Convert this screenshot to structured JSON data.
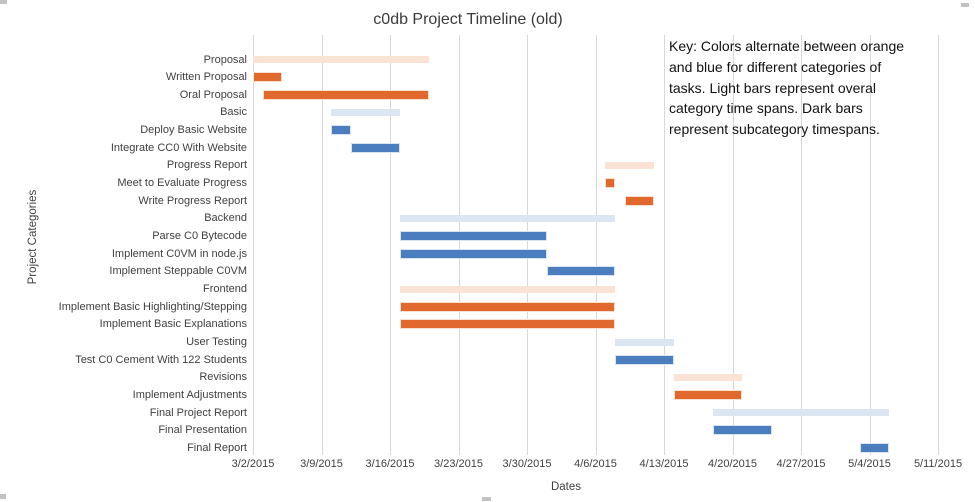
{
  "chart_data": {
    "type": "bar",
    "subtype": "gantt",
    "orientation": "horizontal",
    "title": "c0db Project Timeline (old)",
    "xlabel": "Dates",
    "ylabel": "Project Categories",
    "x_range": [
      "3/2/2015",
      "5/11/2015"
    ],
    "x_ticks": [
      "3/2/2015",
      "3/9/2015",
      "3/16/2015",
      "3/23/2015",
      "3/30/2015",
      "4/6/2015",
      "4/13/2015",
      "4/20/2015",
      "4/27/2015",
      "5/4/2015",
      "5/11/2015"
    ],
    "grid": "vertical-only",
    "legend_position": "none",
    "tasks": [
      {
        "label": "Proposal",
        "start": "3/2/2015",
        "end": "3/20/2015",
        "start_day": 0,
        "end_day": 18,
        "style": "orange_light"
      },
      {
        "label": "Written Proposal",
        "start": "3/2/2015",
        "end": "3/5/2015",
        "start_day": 0,
        "end_day": 3,
        "style": "orange_dark"
      },
      {
        "label": "Oral Proposal",
        "start": "3/3/2015",
        "end": "3/20/2015",
        "start_day": 1,
        "end_day": 18,
        "style": "orange_dark"
      },
      {
        "label": "Basic",
        "start": "3/10/2015",
        "end": "3/17/2015",
        "start_day": 8,
        "end_day": 15,
        "style": "blue_light"
      },
      {
        "label": "Deploy Basic Website",
        "start": "3/10/2015",
        "end": "3/12/2015",
        "start_day": 8,
        "end_day": 10,
        "style": "blue_dark"
      },
      {
        "label": "Integrate CC0 With Website",
        "start": "3/12/2015",
        "end": "3/17/2015",
        "start_day": 10,
        "end_day": 15,
        "style": "blue_dark"
      },
      {
        "label": "Progress Report",
        "start": "4/7/2015",
        "end": "4/12/2015",
        "start_day": 36,
        "end_day": 41,
        "style": "orange_light"
      },
      {
        "label": "Meet to Evaluate Progress",
        "start": "4/7/2015",
        "end": "4/8/2015",
        "start_day": 36,
        "end_day": 37,
        "style": "orange_dark"
      },
      {
        "label": "Write Progress Report",
        "start": "4/9/2015",
        "end": "4/12/2015",
        "start_day": 38,
        "end_day": 41,
        "style": "orange_dark"
      },
      {
        "label": "Backend",
        "start": "3/17/2015",
        "end": "4/8/2015",
        "start_day": 15,
        "end_day": 37,
        "style": "blue_light"
      },
      {
        "label": "Parse C0 Bytecode",
        "start": "3/17/2015",
        "end": "4/1/2015",
        "start_day": 15,
        "end_day": 30,
        "style": "blue_dark"
      },
      {
        "label": "Implement C0VM in node.js",
        "start": "3/17/2015",
        "end": "4/1/2015",
        "start_day": 15,
        "end_day": 30,
        "style": "blue_dark"
      },
      {
        "label": "Implement Steppable C0VM",
        "start": "4/1/2015",
        "end": "4/8/2015",
        "start_day": 30,
        "end_day": 37,
        "style": "blue_dark"
      },
      {
        "label": "Frontend",
        "start": "3/17/2015",
        "end": "4/8/2015",
        "start_day": 15,
        "end_day": 37,
        "style": "orange_light"
      },
      {
        "label": "Implement Basic Highlighting/Stepping",
        "start": "3/17/2015",
        "end": "4/8/2015",
        "start_day": 15,
        "end_day": 37,
        "style": "orange_dark"
      },
      {
        "label": "Implement Basic Explanations",
        "start": "3/17/2015",
        "end": "4/8/2015",
        "start_day": 15,
        "end_day": 37,
        "style": "orange_dark"
      },
      {
        "label": "User Testing",
        "start": "4/8/2015",
        "end": "4/14/2015",
        "start_day": 37,
        "end_day": 43,
        "style": "blue_light"
      },
      {
        "label": "Test C0 Cement With 122 Students",
        "start": "4/8/2015",
        "end": "4/14/2015",
        "start_day": 37,
        "end_day": 43,
        "style": "blue_dark"
      },
      {
        "label": "Revisions",
        "start": "4/14/2015",
        "end": "4/21/2015",
        "start_day": 43,
        "end_day": 50,
        "style": "orange_light"
      },
      {
        "label": "Implement Adjustments",
        "start": "4/14/2015",
        "end": "4/21/2015",
        "start_day": 43,
        "end_day": 50,
        "style": "orange_dark"
      },
      {
        "label": "Final Project Report",
        "start": "4/18/2015",
        "end": "5/6/2015",
        "start_day": 47,
        "end_day": 65,
        "style": "blue_light"
      },
      {
        "label": "Final Presentation",
        "start": "4/18/2015",
        "end": "4/24/2015",
        "start_day": 47,
        "end_day": 53,
        "style": "blue_dark"
      },
      {
        "label": "Final Report",
        "start": "5/3/2015",
        "end": "5/6/2015",
        "start_day": 62,
        "end_day": 65,
        "style": "blue_dark"
      }
    ]
  },
  "key": {
    "lines": [
      "Key: Colors alternate between orange",
      "and blue for different categories of",
      "tasks. Light bars represent overal",
      "category time spans. Dark bars",
      "represent subcategory timespans."
    ]
  },
  "colors": {
    "orange_dark": "#E2692D",
    "orange_light": "#FAE3D4",
    "orange_dark_border": "#F8E0D1",
    "blue_dark": "#4A7EBF",
    "blue_light": "#DCE6F2",
    "blue_dark_border": "#D9E3F2",
    "gridline": "#D8D8D8",
    "text": "#3F3F3F"
  }
}
